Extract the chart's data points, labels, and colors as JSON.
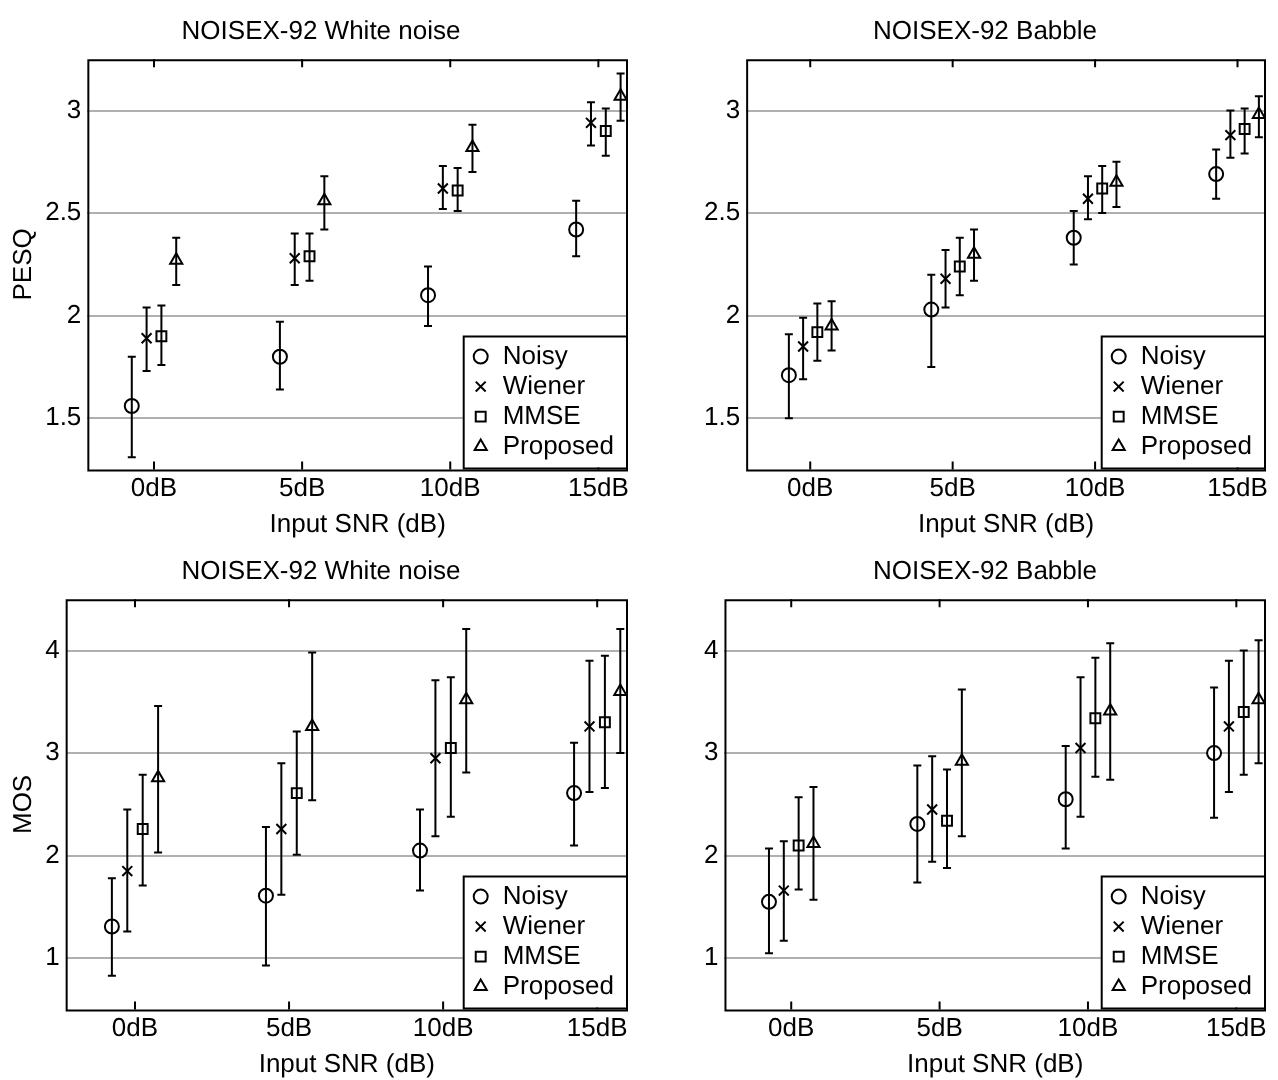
{
  "chart_data": [
    {
      "type": "scatter",
      "title": "NOISEX-92 White noise",
      "xlabel": "Input SNR (dB)",
      "ylabel": "PESQ",
      "categories": [
        "0dB",
        "5dB",
        "10dB",
        "15dB"
      ],
      "ylim": [
        1.25,
        3.25
      ],
      "yticks": [
        1.5,
        2,
        2.5,
        3
      ],
      "grid": "y",
      "legend": "bottom right",
      "series": [
        {
          "name": "Noisy",
          "color": "#000000",
          "marker": "circle",
          "values": [
            1.56,
            1.8,
            2.1,
            2.42
          ],
          "errors": [
            [
              1.31,
              1.8
            ],
            [
              1.64,
              1.97
            ],
            [
              1.95,
              2.24
            ],
            [
              2.29,
              2.56
            ]
          ]
        },
        {
          "name": "Wiener",
          "color": "#000000",
          "marker": "cross",
          "values": [
            1.89,
            2.28,
            2.62,
            2.94
          ],
          "errors": [
            [
              1.73,
              2.04
            ],
            [
              2.15,
              2.4
            ],
            [
              2.52,
              2.73
            ],
            [
              2.83,
              3.04
            ]
          ]
        },
        {
          "name": "MMSE",
          "color": "#000000",
          "marker": "square",
          "values": [
            1.9,
            2.29,
            2.61,
            2.9
          ],
          "errors": [
            [
              1.76,
              2.05
            ],
            [
              2.17,
              2.4
            ],
            [
              2.51,
              2.72
            ],
            [
              2.78,
              3.01
            ]
          ]
        },
        {
          "name": "Proposed",
          "color": "#000000",
          "marker": "triangle",
          "values": [
            2.27,
            2.56,
            2.82,
            3.07
          ],
          "errors": [
            [
              2.15,
              2.38
            ],
            [
              2.42,
              2.68
            ],
            [
              2.7,
              2.93
            ],
            [
              2.95,
              3.18
            ]
          ]
        }
      ]
    },
    {
      "type": "scatter",
      "title": "NOISEX-92 Babble",
      "xlabel": "Input SNR (dB)",
      "categories": [
        "0dB",
        "5dB",
        "10dB",
        "15dB"
      ],
      "ylim": [
        1.25,
        3.25
      ],
      "yticks": [
        1.5,
        2,
        2.5,
        3
      ],
      "grid": "y",
      "legend": "bottom right",
      "series": [
        {
          "name": "Noisy",
          "color": "#000000",
          "marker": "circle",
          "values": [
            1.71,
            2.03,
            2.38,
            2.69
          ],
          "errors": [
            [
              1.5,
              1.91
            ],
            [
              1.75,
              2.2
            ],
            [
              2.25,
              2.51
            ],
            [
              2.57,
              2.81
            ]
          ]
        },
        {
          "name": "Wiener",
          "color": "#000000",
          "marker": "cross",
          "values": [
            1.85,
            2.18,
            2.57,
            2.88
          ],
          "errors": [
            [
              1.69,
              1.99
            ],
            [
              2.04,
              2.32
            ],
            [
              2.47,
              2.68
            ],
            [
              2.77,
              3.0
            ]
          ]
        },
        {
          "name": "MMSE",
          "color": "#000000",
          "marker": "square",
          "values": [
            1.92,
            2.24,
            2.62,
            2.91
          ],
          "errors": [
            [
              1.78,
              2.06
            ],
            [
              2.1,
              2.38
            ],
            [
              2.5,
              2.73
            ],
            [
              2.79,
              3.01
            ]
          ]
        },
        {
          "name": "Proposed",
          "color": "#000000",
          "marker": "triangle",
          "values": [
            1.95,
            2.3,
            2.65,
            2.98
          ],
          "errors": [
            [
              1.83,
              2.07
            ],
            [
              2.17,
              2.42
            ],
            [
              2.53,
              2.75
            ],
            [
              2.87,
              3.07
            ]
          ]
        }
      ]
    },
    {
      "type": "scatter",
      "title": "NOISEX-92 White noise",
      "xlabel": "Input SNR (dB)",
      "ylabel": "MOS",
      "categories": [
        "0dB",
        "5dB",
        "10dB",
        "15dB"
      ],
      "ylim": [
        0.5,
        4.5
      ],
      "yticks": [
        1,
        2,
        3,
        4
      ],
      "grid": "y",
      "legend": "bottom right",
      "series": [
        {
          "name": "Noisy",
          "color": "#000000",
          "marker": "circle",
          "values": [
            1.31,
            1.61,
            2.05,
            2.61
          ],
          "errors": [
            [
              0.83,
              1.78
            ],
            [
              0.93,
              2.28
            ],
            [
              1.66,
              2.45
            ],
            [
              2.1,
              3.1
            ]
          ]
        },
        {
          "name": "Wiener",
          "color": "#000000",
          "marker": "cross",
          "values": [
            1.85,
            2.26,
            2.95,
            3.26
          ],
          "errors": [
            [
              1.26,
              2.45
            ],
            [
              1.62,
              2.9
            ],
            [
              2.19,
              3.71
            ],
            [
              2.62,
              3.9
            ]
          ]
        },
        {
          "name": "MMSE",
          "color": "#000000",
          "marker": "square",
          "values": [
            2.26,
            2.61,
            3.05,
            3.3
          ],
          "errors": [
            [
              1.71,
              2.79
            ],
            [
              2.01,
              3.21
            ],
            [
              2.38,
              3.74
            ],
            [
              2.66,
              3.95
            ]
          ]
        },
        {
          "name": "Proposed",
          "color": "#000000",
          "marker": "triangle",
          "values": [
            2.76,
            3.26,
            3.52,
            3.6
          ],
          "errors": [
            [
              2.03,
              3.46
            ],
            [
              2.54,
              3.98
            ],
            [
              2.81,
              4.21
            ],
            [
              3.0,
              4.21
            ]
          ]
        }
      ]
    },
    {
      "type": "scatter",
      "title": "NOISEX-92 Babble",
      "xlabel": "Input SNR (dB)",
      "categories": [
        "0dB",
        "5dB",
        "10dB",
        "15dB"
      ],
      "ylim": [
        0.5,
        4.5
      ],
      "yticks": [
        1,
        2,
        3,
        4
      ],
      "grid": "y",
      "legend": "bottom right",
      "series": [
        {
          "name": "Noisy",
          "color": "#000000",
          "marker": "circle",
          "values": [
            1.55,
            2.31,
            2.55,
            3.0
          ],
          "errors": [
            [
              1.05,
              2.07
            ],
            [
              1.74,
              2.88
            ],
            [
              2.07,
              3.07
            ],
            [
              2.37,
              3.64
            ]
          ]
        },
        {
          "name": "Wiener",
          "color": "#000000",
          "marker": "cross",
          "values": [
            1.66,
            2.45,
            3.05,
            3.26
          ],
          "errors": [
            [
              1.17,
              2.14
            ],
            [
              1.94,
              2.97
            ],
            [
              2.38,
              3.74
            ],
            [
              2.62,
              3.9
            ]
          ]
        },
        {
          "name": "MMSE",
          "color": "#000000",
          "marker": "square",
          "values": [
            2.1,
            2.34,
            3.34,
            3.4
          ],
          "errors": [
            [
              1.67,
              2.57
            ],
            [
              1.88,
              2.84
            ],
            [
              2.77,
              3.93
            ],
            [
              2.79,
              4.0
            ]
          ]
        },
        {
          "name": "Proposed",
          "color": "#000000",
          "marker": "triangle",
          "values": [
            2.12,
            2.92,
            3.41,
            3.52
          ],
          "errors": [
            [
              1.57,
              2.67
            ],
            [
              2.19,
              3.62
            ],
            [
              2.74,
              4.07
            ],
            [
              2.9,
              4.1
            ]
          ]
        }
      ]
    }
  ]
}
